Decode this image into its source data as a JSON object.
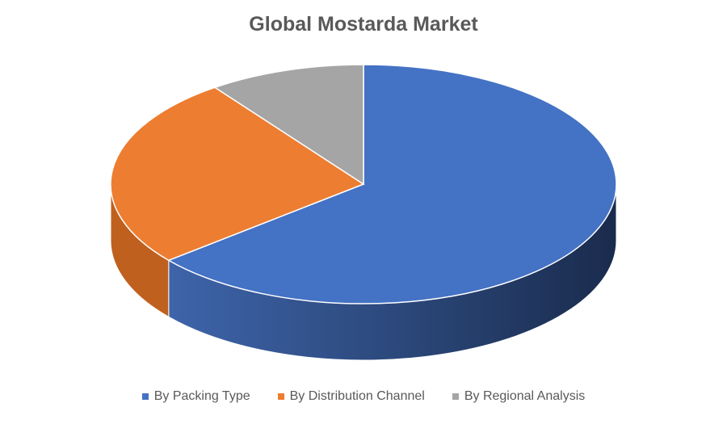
{
  "chart_data": {
    "type": "pie",
    "title": "Global Mostarda Market",
    "categories": [
      "By Packing Type",
      "By Distribution Channel",
      "By Regional Analysis"
    ],
    "values": [
      64,
      26,
      10
    ],
    "colors": [
      "#4472C4",
      "#ED7D31",
      "#A5A5A5"
    ],
    "side_colors": [
      "#2B4C8A",
      "#C0601E",
      "#7F7F7F"
    ],
    "legend_position": "bottom",
    "style": "3d-pie"
  }
}
